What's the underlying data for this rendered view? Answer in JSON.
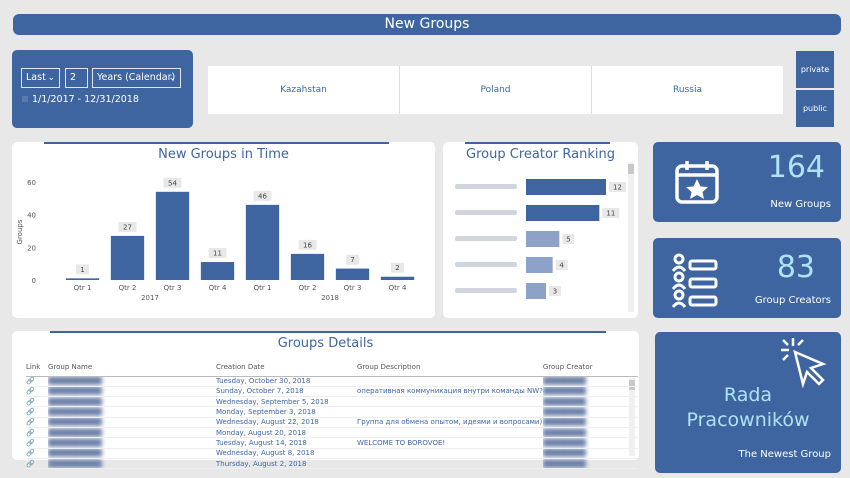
{
  "header": {
    "title": "New Groups"
  },
  "filter": {
    "period": "Last",
    "count": "2",
    "unit": "Years (Calendar)",
    "date_range": "1/1/2017 - 12/31/2018"
  },
  "countries": [
    "Kazahstan",
    "Poland",
    "Russia"
  ],
  "group_types": [
    "private",
    "public"
  ],
  "time_chart": {
    "title": "New Groups in Time",
    "chart_data": {
      "type": "bar",
      "categories": [
        "Qtr 1",
        "Qtr 2",
        "Qtr 3",
        "Qtr 4",
        "Qtr 1",
        "Qtr 2",
        "Qtr 3",
        "Qtr 4"
      ],
      "years": [
        "2017",
        "2018"
      ],
      "values": [
        1,
        27,
        54,
        11,
        46,
        16,
        7,
        2
      ],
      "ylabel": "Groups",
      "yticks": [
        "0",
        "20",
        "40",
        "60"
      ],
      "ylim": [
        0,
        60
      ],
      "color": "#3e65a0"
    }
  },
  "ranking_chart": {
    "title": "Group Creator Ranking",
    "chart_data": {
      "type": "bar",
      "orientation": "horizontal",
      "values": [
        12,
        11,
        5,
        4,
        3
      ],
      "colors": [
        "#3e65a0",
        "#3e65a0",
        "#8da2c9",
        "#8da2c9",
        "#8da2c9"
      ]
    }
  },
  "kpis": {
    "new_groups": {
      "value": "164",
      "label": "New Groups",
      "icon": "calendar-star-icon"
    },
    "group_creators": {
      "value": "83",
      "label": "Group Creators",
      "icon": "user-list-icon"
    }
  },
  "details": {
    "title": "Groups Details",
    "columns": [
      "Link",
      "Group Name",
      "Creation Date",
      "Group Description",
      "Group Creator"
    ],
    "rows": [
      {
        "date": "Tuesday, October 30, 2018",
        "desc": ""
      },
      {
        "date": "Sunday, October 7, 2018",
        "desc": "оперативная коммуникация внутри команды NW?"
      },
      {
        "date": "Wednesday, September 5, 2018",
        "desc": ""
      },
      {
        "date": "Monday, September 3, 2018",
        "desc": ""
      },
      {
        "date": "Wednesday, August 22, 2018",
        "desc": "Группа для обмена опытом, идеями и вопросами)"
      },
      {
        "date": "Monday, August 20, 2018",
        "desc": ""
      },
      {
        "date": "Tuesday, August 14, 2018",
        "desc": "WELCOME TO BOROVOE!"
      },
      {
        "date": "Wednesday, August 8, 2018",
        "desc": ""
      },
      {
        "date": "Thursday, August 2, 2018",
        "desc": ""
      }
    ]
  },
  "newest": {
    "name_line1": "Rada",
    "name_line2": "Pracowników",
    "label": "The Newest Group",
    "icon": "cursor-click-icon"
  }
}
